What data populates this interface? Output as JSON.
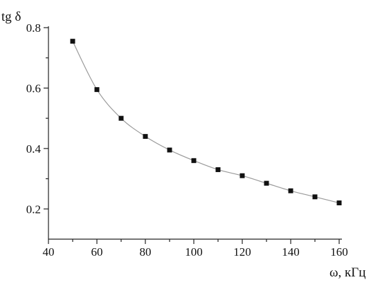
{
  "chart_data": {
    "type": "scatter",
    "x": [
      50,
      60,
      70,
      80,
      90,
      100,
      110,
      120,
      130,
      140,
      150,
      160
    ],
    "y": [
      0.755,
      0.595,
      0.5,
      0.44,
      0.395,
      0.36,
      0.33,
      0.31,
      0.285,
      0.26,
      0.24,
      0.22
    ],
    "xlabel": "ω, кГц",
    "ylabel": "tg δ",
    "xlim": [
      40,
      160
    ],
    "ylim": [
      0.1,
      0.8
    ],
    "xticks": [
      40,
      60,
      80,
      100,
      120,
      140,
      160
    ],
    "xticks_minor": [
      50,
      70,
      90,
      110,
      130,
      150
    ],
    "yticks": [
      0.2,
      0.4,
      0.6,
      0.8
    ],
    "yticks_minor": [
      0.3,
      0.5,
      0.7
    ],
    "xtick_labels": [
      "40",
      "60",
      "80",
      "100",
      "120",
      "140",
      "160"
    ],
    "ytick_labels": [
      "0.2",
      "0.4",
      "0.6",
      "0.8"
    ],
    "grid": false,
    "smooth_curve": true,
    "colors": {
      "points": "#111111",
      "curve": "#9a9a9a",
      "axes": "#222222"
    }
  }
}
